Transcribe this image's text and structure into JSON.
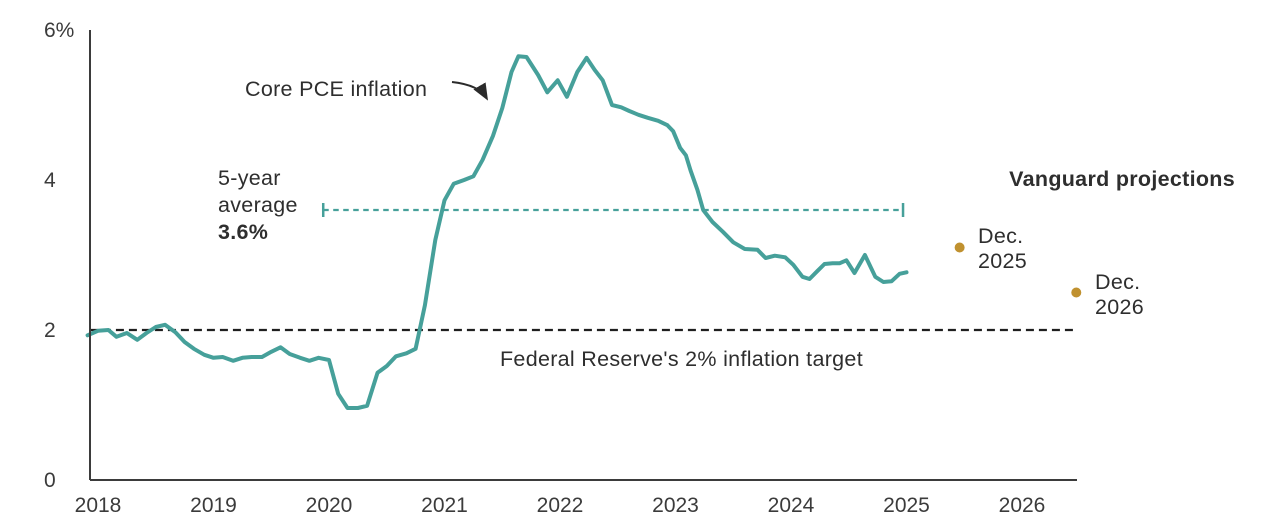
{
  "page": {
    "background": "#ffffff"
  },
  "colors": {
    "teal": "#46a09a",
    "gold": "#c0912f",
    "axis": "#3b3b3b",
    "target_line": "#1f1f1f",
    "text": "#2e2e2e"
  },
  "chart_data": {
    "type": "line",
    "title": "",
    "xlabel": "",
    "ylabel": "",
    "xlim": [
      2018.43,
      2026.98
    ],
    "ylim": [
      0,
      6
    ],
    "grid": false,
    "x_axis": {
      "tick_labels": [
        "2018",
        "2019",
        "2020",
        "2021",
        "2022",
        "2023",
        "2024",
        "2025",
        "2026"
      ],
      "tick_years": [
        2018,
        2019,
        2020,
        2021,
        2022,
        2023,
        2024,
        2025,
        2026
      ]
    },
    "y_axis": {
      "ticks": [
        {
          "v": 0,
          "label": "0"
        },
        {
          "v": 2,
          "label": "2"
        },
        {
          "v": 4,
          "label": "4"
        },
        {
          "v": 6,
          "label": "6%"
        }
      ]
    },
    "series": [
      {
        "name": "Core PCE inflation",
        "color": "#46a09a",
        "points": [
          [
            2018.41,
            1.93
          ],
          [
            2018.5,
            1.99
          ],
          [
            2018.59,
            2.0
          ],
          [
            2018.66,
            1.91
          ],
          [
            2018.75,
            1.96
          ],
          [
            2018.84,
            1.87
          ],
          [
            2018.92,
            1.96
          ],
          [
            2019.0,
            2.04
          ],
          [
            2019.08,
            2.07
          ],
          [
            2019.17,
            1.97
          ],
          [
            2019.25,
            1.84
          ],
          [
            2019.33,
            1.75
          ],
          [
            2019.42,
            1.67
          ],
          [
            2019.5,
            1.63
          ],
          [
            2019.58,
            1.64
          ],
          [
            2019.67,
            1.59
          ],
          [
            2019.75,
            1.63
          ],
          [
            2019.83,
            1.64
          ],
          [
            2019.92,
            1.64
          ],
          [
            2020.0,
            1.71
          ],
          [
            2020.08,
            1.77
          ],
          [
            2020.16,
            1.68
          ],
          [
            2020.25,
            1.63
          ],
          [
            2020.33,
            1.59
          ],
          [
            2020.41,
            1.63
          ],
          [
            2020.5,
            1.6
          ],
          [
            2020.58,
            1.15
          ],
          [
            2020.66,
            0.96
          ],
          [
            2020.75,
            0.96
          ],
          [
            2020.83,
            0.99
          ],
          [
            2020.92,
            1.43
          ],
          [
            2021.0,
            1.52
          ],
          [
            2021.08,
            1.65
          ],
          [
            2021.17,
            1.69
          ],
          [
            2021.25,
            1.75
          ],
          [
            2021.33,
            2.33
          ],
          [
            2021.42,
            3.2
          ],
          [
            2021.5,
            3.73
          ],
          [
            2021.58,
            3.95
          ],
          [
            2021.67,
            4.0
          ],
          [
            2021.75,
            4.05
          ],
          [
            2021.83,
            4.27
          ],
          [
            2021.92,
            4.59
          ],
          [
            2022.0,
            4.96
          ],
          [
            2022.08,
            5.44
          ],
          [
            2022.14,
            5.65
          ],
          [
            2022.21,
            5.64
          ],
          [
            2022.31,
            5.4
          ],
          [
            2022.39,
            5.17
          ],
          [
            2022.48,
            5.33
          ],
          [
            2022.56,
            5.11
          ],
          [
            2022.65,
            5.44
          ],
          [
            2022.73,
            5.63
          ],
          [
            2022.8,
            5.47
          ],
          [
            2022.87,
            5.33
          ],
          [
            2022.95,
            5.0
          ],
          [
            2023.03,
            4.97
          ],
          [
            2023.1,
            4.92
          ],
          [
            2023.18,
            4.87
          ],
          [
            2023.26,
            4.83
          ],
          [
            2023.35,
            4.79
          ],
          [
            2023.43,
            4.73
          ],
          [
            2023.48,
            4.65
          ],
          [
            2023.54,
            4.43
          ],
          [
            2023.59,
            4.33
          ],
          [
            2023.63,
            4.13
          ],
          [
            2023.69,
            3.87
          ],
          [
            2023.74,
            3.6
          ],
          [
            2023.82,
            3.44
          ],
          [
            2023.91,
            3.31
          ],
          [
            2024.0,
            3.17
          ],
          [
            2024.1,
            3.08
          ],
          [
            2024.21,
            3.07
          ],
          [
            2024.28,
            2.96
          ],
          [
            2024.36,
            2.99
          ],
          [
            2024.45,
            2.97
          ],
          [
            2024.52,
            2.87
          ],
          [
            2024.6,
            2.71
          ],
          [
            2024.66,
            2.68
          ],
          [
            2024.73,
            2.79
          ],
          [
            2024.79,
            2.88
          ],
          [
            2024.86,
            2.89
          ],
          [
            2024.92,
            2.89
          ],
          [
            2024.98,
            2.93
          ],
          [
            2025.05,
            2.76
          ],
          [
            2025.14,
            3.0
          ],
          [
            2025.23,
            2.71
          ],
          [
            2025.3,
            2.64
          ],
          [
            2025.37,
            2.65
          ],
          [
            2025.44,
            2.75
          ],
          [
            2025.5,
            2.77
          ]
        ]
      }
    ],
    "reference_lines": [
      {
        "id": "fed_target",
        "value": 2.0,
        "label": "Federal Reserve's 2% inflation target",
        "color": "#1f1f1f",
        "style": "dashed",
        "t_start": 2018.43,
        "t_end": 2026.98,
        "caps": false
      },
      {
        "id": "five_year_avg",
        "value": 3.6,
        "label_line1": "5-year",
        "label_line2": "average",
        "label_value": "3.6%",
        "color": "#46a09a",
        "style": "dashed",
        "t_start": 2020.45,
        "t_end": 2025.47,
        "caps": true
      }
    ],
    "projections": {
      "title": "Vanguard projections",
      "color": "#c0912f",
      "points": [
        {
          "label_line1": "Dec.",
          "label_line2": "2025",
          "t": 2025.96,
          "value": 3.1
        },
        {
          "label_line1": "Dec.",
          "label_line2": "2026",
          "t": 2026.97,
          "value": 2.5
        }
      ]
    },
    "annotations": {
      "core_pce_label": "Core PCE inflation"
    },
    "legend": "none"
  }
}
